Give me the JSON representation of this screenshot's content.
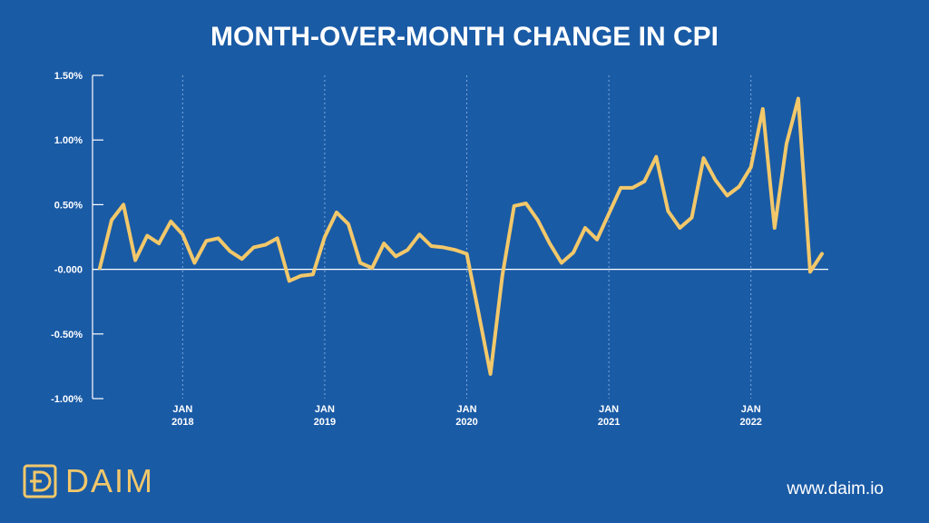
{
  "title": "MONTH-OVER-MONTH CHANGE IN CPI",
  "brand": {
    "name": "DAIM",
    "website": "www.daim.io"
  },
  "colors": {
    "background": "#1a5ba6",
    "line": "#f2c86a",
    "axis": "#ffffff",
    "gridline": "#7ea9d8"
  },
  "chart_data": {
    "type": "line",
    "title": "MONTH-OVER-MONTH CHANGE IN CPI",
    "xlabel": "",
    "ylabel": "",
    "y_ticks": [
      "1.50%",
      "1.00%",
      "0.50%",
      "-0.000",
      "-0.50%",
      "-1.00%"
    ],
    "ylim": [
      -1.0,
      1.5
    ],
    "x_ticks": [
      {
        "month": "JAN",
        "year": "2018"
      },
      {
        "month": "JAN",
        "year": "2019"
      },
      {
        "month": "JAN",
        "year": "2020"
      },
      {
        "month": "JAN",
        "year": "2021"
      },
      {
        "month": "JAN",
        "year": "2022"
      }
    ],
    "grid": "vertical dashed at year ticks",
    "series": [
      {
        "values": [
          0.01,
          0.38,
          0.5,
          0.07,
          0.26,
          0.2,
          0.37,
          0.27,
          0.05,
          0.22,
          0.24,
          0.14,
          0.08,
          0.17,
          0.19,
          0.24,
          -0.09,
          -0.05,
          -0.04,
          0.25,
          0.44,
          0.35,
          0.05,
          0.01,
          0.2,
          0.1,
          0.15,
          0.27,
          0.18,
          0.17,
          0.15,
          0.12,
          -0.34,
          -0.81,
          -0.05,
          0.49,
          0.51,
          0.38,
          0.2,
          0.05,
          0.13,
          0.32,
          0.23,
          0.43,
          0.63,
          0.63,
          0.68,
          0.87,
          0.45,
          0.32,
          0.4,
          0.86,
          0.69,
          0.57,
          0.64,
          0.79,
          1.24,
          0.32,
          0.97,
          1.32,
          -0.02,
          0.12
        ]
      }
    ]
  }
}
